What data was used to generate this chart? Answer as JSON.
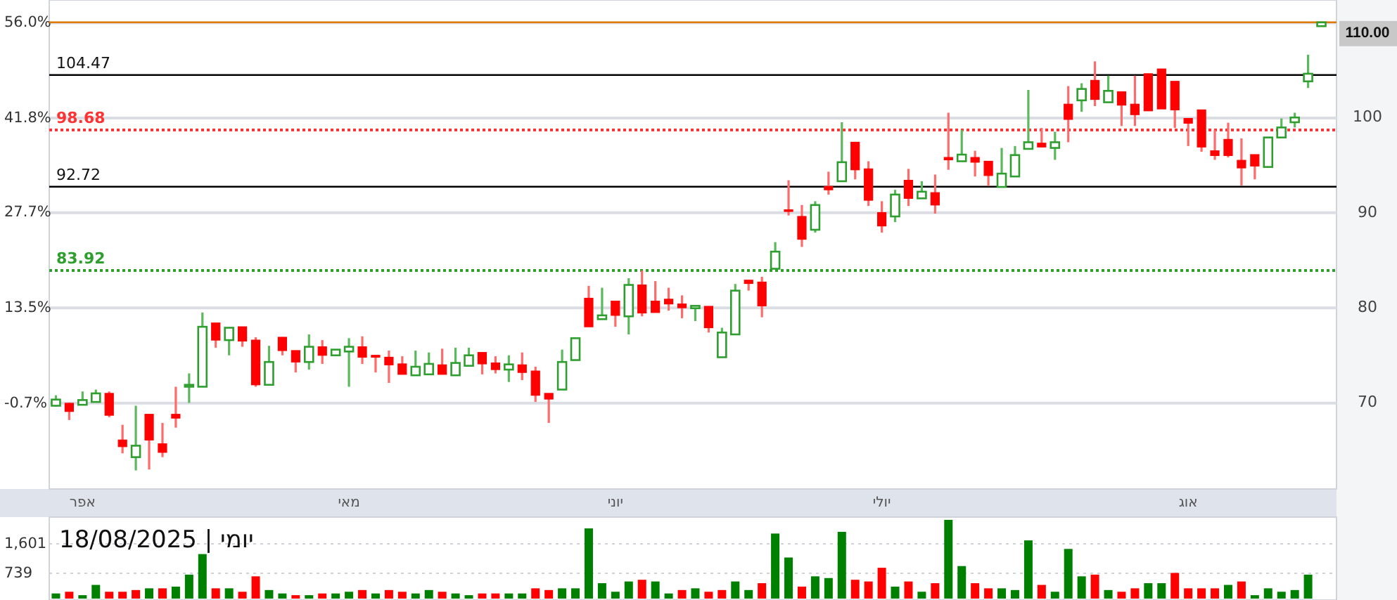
{
  "chart_data": [
    {
      "type": "candlestick",
      "categories": [
        null,
        null,
        "אפר",
        null,
        null,
        null,
        null,
        null,
        null,
        null,
        null,
        null,
        null,
        null,
        null,
        null,
        null,
        null,
        null,
        null,
        null,
        null,
        "מאי",
        null,
        null,
        null,
        null,
        null,
        null,
        null,
        null,
        null,
        null,
        null,
        null,
        null,
        null,
        null,
        null,
        null,
        null,
        null,
        "יוני",
        null,
        null,
        null,
        null,
        null,
        null,
        null,
        null,
        null,
        null,
        null,
        null,
        null,
        null,
        null,
        null,
        null,
        null,
        null,
        "יולי",
        null,
        null,
        null,
        null,
        null,
        null,
        null,
        null,
        null,
        null,
        null,
        null,
        null,
        null,
        null,
        null,
        null,
        null,
        null,
        null,
        null,
        null,
        "אוג",
        null,
        null,
        null,
        null,
        null,
        null,
        null,
        null,
        null,
        null
      ],
      "series": [
        {
          "axis": "y2",
          "ohlc": [
            [
              69.7,
              70.8,
              69.6,
              70.35
            ],
            [
              69.96,
              70.0,
              68.2,
              69.1
            ],
            [
              69.8,
              71.2,
              69.8,
              70.3
            ],
            [
              70.1,
              71.4,
              70.1,
              71.0
            ],
            [
              71.0,
              71.2,
              68.5,
              68.7
            ],
            [
              66.1,
              67.7,
              64.7,
              65.4
            ],
            [
              64.3,
              69.7,
              62.9,
              65.5
            ],
            [
              68.8,
              68.8,
              63.0,
              66.1
            ],
            [
              65.7,
              67.9,
              64.3,
              64.8
            ],
            [
              68.8,
              71.7,
              67.4,
              68.4
            ],
            [
              71.7,
              73.1,
              70.0,
              71.9
            ],
            [
              71.7,
              79.5,
              71.7,
              78.0
            ],
            [
              78.4,
              78.4,
              75.8,
              76.6
            ],
            [
              76.6,
              77.9,
              75.0,
              77.9
            ],
            [
              78.0,
              78.0,
              75.9,
              76.5
            ],
            [
              76.6,
              76.9,
              71.7,
              71.9
            ],
            [
              71.9,
              76.0,
              71.9,
              74.3
            ],
            [
              76.9,
              76.9,
              75.0,
              75.5
            ],
            [
              75.5,
              75.5,
              73.2,
              74.3
            ],
            [
              74.3,
              77.2,
              73.5,
              75.9
            ],
            [
              75.9,
              76.6,
              74.1,
              75.0
            ],
            [
              75.0,
              75.6,
              75.0,
              75.6
            ],
            [
              75.4,
              76.8,
              71.7,
              75.9
            ],
            [
              75.9,
              77.0,
              74.1,
              74.8
            ],
            [
              75.0,
              75.0,
              73.2,
              74.8
            ],
            [
              74.8,
              75.5,
              72.1,
              74.0
            ],
            [
              74.1,
              74.9,
              73.0,
              73.0
            ],
            [
              72.9,
              75.5,
              72.9,
              73.8
            ],
            [
              73.0,
              75.3,
              73.0,
              74.1
            ],
            [
              74.0,
              75.7,
              73.0,
              73.0
            ],
            [
              72.9,
              75.8,
              72.9,
              74.2
            ],
            [
              73.9,
              75.8,
              73.9,
              75.0
            ],
            [
              75.3,
              75.3,
              73.0,
              74.1
            ],
            [
              74.2,
              74.9,
              73.1,
              73.5
            ],
            [
              73.5,
              75.0,
              72.2,
              74.05
            ],
            [
              74.0,
              75.3,
              72.4,
              73.2
            ],
            [
              73.35,
              73.8,
              70.1,
              70.8
            ],
            [
              71.0,
              71.0,
              67.9,
              70.4
            ],
            [
              71.4,
              75.6,
              71.4,
              74.3
            ],
            [
              74.5,
              76.8,
              74.5,
              76.8
            ],
            [
              81.0,
              82.3,
              78.0,
              78.0
            ],
            [
              78.8,
              82.1,
              78.8,
              79.2
            ],
            [
              80.7,
              80.7,
              78.0,
              79.2
            ],
            [
              79.1,
              83.1,
              77.2,
              82.4
            ],
            [
              82.4,
              83.9,
              79.1,
              79.45
            ],
            [
              80.7,
              82.8,
              79.5,
              79.5
            ],
            [
              80.9,
              82.1,
              79.7,
              80.4
            ],
            [
              80.4,
              81.3,
              78.9,
              80.0
            ],
            [
              79.95,
              80.2,
              78.6,
              80.2
            ],
            [
              80.15,
              80.15,
              77.4,
              77.9
            ],
            [
              74.8,
              77.9,
              74.8,
              77.4
            ],
            [
              77.2,
              82.5,
              77.2,
              81.8
            ],
            [
              82.9,
              82.9,
              81.8,
              82.55
            ],
            [
              82.7,
              83.25,
              79.0,
              80.2
            ],
            [
              84.1,
              86.9,
              84.1,
              85.9
            ],
            [
              90.3,
              93.4,
              89.7,
              90.2
            ],
            [
              89.6,
              90.8,
              86.4,
              87.2
            ],
            [
              88.2,
              91.2,
              87.9,
              90.8
            ],
            [
              92.75,
              94.3,
              91.9,
              92.4
            ],
            [
              93.3,
              99.5,
              93.3,
              95.3
            ],
            [
              97.4,
              97.4,
              93.5,
              94.5
            ],
            [
              94.6,
              95.4,
              90.7,
              91.3
            ],
            [
              90.0,
              91.2,
              87.9,
              88.6
            ],
            [
              89.6,
              92.4,
              89.0,
              91.9
            ],
            [
              93.4,
              94.6,
              90.7,
              91.5
            ],
            [
              91.5,
              93.3,
              91.5,
              92.2
            ],
            [
              92.1,
              94.0,
              89.9,
              90.8
            ],
            [
              95.8,
              100.5,
              94.5,
              95.55
            ],
            [
              95.4,
              98.7,
              95.4,
              96.1
            ],
            [
              95.8,
              96.5,
              93.8,
              95.3
            ],
            [
              95.4,
              95.4,
              92.8,
              93.9
            ],
            [
              92.7,
              96.8,
              92.7,
              94.1
            ],
            [
              93.8,
              97.0,
              93.8,
              96.05
            ],
            [
              96.7,
              102.9,
              96.7,
              97.4
            ],
            [
              97.3,
              98.9,
              96.9,
              96.9
            ],
            [
              96.8,
              98.5,
              95.55,
              97.4
            ],
            [
              101.4,
              103.3,
              97.4,
              99.8
            ],
            [
              101.8,
              103.6,
              100.6,
              103.0
            ],
            [
              103.9,
              105.9,
              101.2,
              101.9
            ],
            [
              101.6,
              104.4,
              101.6,
              102.8
            ],
            [
              102.7,
              102.7,
              99.1,
              101.3
            ],
            [
              101.4,
              104.4,
              99.1,
              100.3
            ],
            [
              104.6,
              104.6,
              100.7,
              100.7
            ],
            [
              105.1,
              105.1,
              100.9,
              100.9
            ],
            [
              103.8,
              103.8,
              98.9,
              100.8
            ],
            [
              99.9,
              99.9,
              97.0,
              99.4
            ],
            [
              100.8,
              100.8,
              96.4,
              96.9
            ],
            [
              96.5,
              98.7,
              95.55,
              96.0
            ],
            [
              97.7,
              99.45,
              95.8,
              96.0
            ],
            [
              95.5,
              97.8,
              92.85,
              94.7
            ],
            [
              96.1,
              96.1,
              93.5,
              94.9
            ],
            [
              94.8,
              97.9,
              94.8,
              97.9
            ],
            [
              97.9,
              99.9,
              97.9,
              98.95
            ],
            [
              99.5,
              100.5,
              98.95,
              100.0
            ],
            [
              103.8,
              106.6,
              103.1,
              104.6
            ],
            [
              109.6,
              110.0,
              109.6,
              110.0
            ]
          ]
        }
      ],
      "ylim": [
        -13.5,
        59.4
      ],
      "yticks": [
        {
          "value": -0.7,
          "label": "-0.7%"
        },
        {
          "value": 13.5,
          "label": "13.5%"
        },
        {
          "value": 27.7,
          "label": "27.7%"
        },
        {
          "value": 41.8,
          "label": "41.8%"
        },
        {
          "value": 56.0,
          "label": "56.0%"
        }
      ],
      "y2lim": [
        60.95,
        112.35
      ],
      "y2ticks": [
        70,
        80,
        90,
        100
      ],
      "grid": "y",
      "ref_lines": [
        {
          "axis": "y2",
          "value": 104.47,
          "label": "104.47",
          "color": "#000000",
          "line_style": "solid"
        },
        {
          "axis": "y2",
          "value": 98.68,
          "label": "98.68",
          "color": "#ff3333",
          "line_style": "dotted"
        },
        {
          "axis": "y2",
          "value": 92.72,
          "label": "92.72",
          "color": "#000000",
          "line_style": "solid"
        },
        {
          "axis": "y2",
          "value": 83.92,
          "label": "83.92",
          "color": "#2e9e2e",
          "line_style": "dotted"
        },
        {
          "axis": "y2",
          "value": 110.0,
          "label": "110.00",
          "color": "#e07b00",
          "line_style": "solid"
        }
      ]
    },
    {
      "type": "bar",
      "title": "יומי | 18/08/2025",
      "categories": [
        null,
        null,
        null,
        null,
        null,
        null,
        null,
        null,
        null,
        null,
        null,
        null,
        null,
        null,
        null,
        null,
        null,
        null,
        null,
        null,
        null,
        null,
        null,
        null,
        null,
        null,
        null,
        null,
        null,
        null,
        null,
        null,
        null,
        null,
        null,
        null,
        null,
        null,
        null,
        null,
        null,
        null,
        null,
        null,
        null,
        null,
        null,
        null,
        null,
        null,
        null,
        null,
        null,
        null,
        null,
        null,
        null,
        null,
        null,
        null,
        null,
        null,
        null,
        null,
        null,
        null,
        null,
        null,
        null,
        null,
        null,
        null,
        null,
        null,
        null,
        null,
        null,
        null,
        null,
        null,
        null,
        null,
        null,
        null,
        null,
        null,
        null,
        null,
        null,
        null,
        null,
        null,
        null,
        null,
        null,
        null
      ],
      "values": [
        150,
        200,
        100,
        400,
        200,
        200,
        250,
        300,
        300,
        350,
        700,
        1300,
        300,
        300,
        200,
        650,
        250,
        150,
        100,
        100,
        150,
        150,
        200,
        250,
        150,
        250,
        200,
        150,
        250,
        200,
        150,
        100,
        150,
        150,
        150,
        150,
        300,
        250,
        300,
        300,
        2050,
        450,
        200,
        500,
        550,
        500,
        150,
        250,
        300,
        200,
        250,
        500,
        250,
        450,
        1900,
        1200,
        350,
        650,
        600,
        1950,
        550,
        500,
        900,
        350,
        500,
        200,
        450,
        2300,
        950,
        450,
        300,
        300,
        250,
        1700,
        400,
        200,
        1450,
        650,
        700,
        250,
        200,
        300,
        450,
        450,
        750,
        300,
        300,
        300,
        400,
        500,
        100,
        300,
        200,
        250,
        700,
        null
      ],
      "colors": [
        "#008000",
        "#ff0000",
        "#008000",
        "#008000",
        "#ff0000",
        "#ff0000",
        "#ff0000",
        "#008000",
        "#ff0000",
        "#008000",
        "#008000",
        "#008000",
        "#ff0000",
        "#008000",
        "#ff0000",
        "#ff0000",
        "#008000",
        "#008000",
        "#ff0000",
        "#008000",
        "#ff0000",
        "#008000",
        "#008000",
        "#ff0000",
        "#008000",
        "#ff0000",
        "#ff0000",
        "#008000",
        "#008000",
        "#ff0000",
        "#008000",
        "#008000",
        "#ff0000",
        "#ff0000",
        "#008000",
        "#008000",
        "#ff0000",
        "#ff0000",
        "#008000",
        "#008000",
        "#008000",
        "#008000",
        "#008000",
        "#008000",
        "#ff0000",
        "#008000",
        "#008000",
        "#ff0000",
        "#008000",
        "#ff0000",
        "#ff0000",
        "#008000",
        "#008000",
        "#ff0000",
        "#008000",
        "#008000",
        "#ff0000",
        "#008000",
        "#008000",
        "#008000",
        "#ff0000",
        "#ff0000",
        "#ff0000",
        "#008000",
        "#ff0000",
        "#008000",
        "#ff0000",
        "#008000",
        "#008000",
        "#ff0000",
        "#ff0000",
        "#008000",
        "#008000",
        "#008000",
        "#ff0000",
        "#008000",
        "#008000",
        "#008000",
        "#ff0000",
        "#008000",
        "#ff0000",
        "#ff0000",
        "#008000",
        "#008000",
        "#ff0000",
        "#ff0000",
        "#ff0000",
        "#ff0000",
        "#008000",
        "#ff0000",
        "#008000",
        "#008000",
        "#008000",
        "#008000",
        "#008000",
        null
      ],
      "ylim": [
        0,
        2380
      ],
      "yticks": [
        {
          "value": 739,
          "label": "739"
        },
        {
          "value": 1601,
          "label": "1,601"
        }
      ],
      "grid": "y",
      "tick_labels": "y"
    }
  ]
}
